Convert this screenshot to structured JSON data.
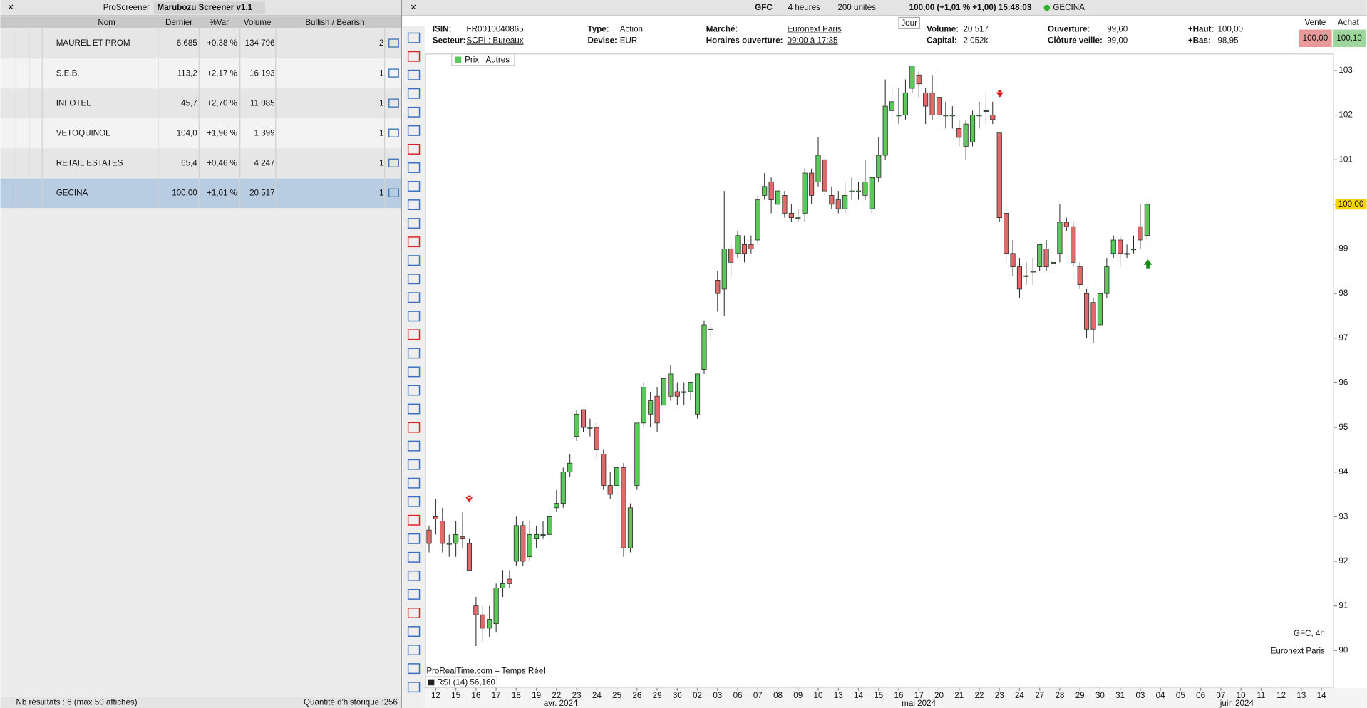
{
  "screener": {
    "tab": "ProScreener",
    "name": "Marubozu Screener v1.1",
    "columns": [
      "Nom",
      "Dernier",
      "%Var",
      "Volume",
      "Bullish / Bearish"
    ],
    "rows": [
      [
        "MAUREL ET PROM",
        "6,685",
        "+0,38 %",
        "134 796",
        "2"
      ],
      [
        "S.E.B.",
        "113,2",
        "+2,17 %",
        "16 193",
        "1"
      ],
      [
        "INFOTEL",
        "45,7",
        "+2,70 %",
        "11 085",
        "1"
      ],
      [
        "VETOQUINOL",
        "104,0",
        "+1,96 %",
        "1 399",
        "1"
      ],
      [
        "RETAIL ESTATES",
        "65,4",
        "+0,46 %",
        "4 247",
        "1"
      ],
      [
        "GECINA",
        "100,00",
        "+1,01 %",
        "20 517",
        "1"
      ]
    ],
    "status": "Nb résultats : 6 (max 50 affichés)",
    "history": "Quantité d'historique :256"
  },
  "topbar": {
    "symbol": "GFC",
    "period": "4 heures",
    "units": "200 unités",
    "quote": "100,00 (+1,01 % +1,00) 15:48:03",
    "name": "GECINA"
  },
  "info": [
    [
      "ISIN:",
      "FR0010040865"
    ],
    [
      "Secteur:",
      "SCPI : Bureaux"
    ],
    [
      "Type:",
      "Action"
    ],
    [
      "Devise:",
      "EUR"
    ],
    [
      "Marché:",
      "Euronext Paris"
    ],
    [
      "Horaires ouverture:",
      "09:00 à 17:35"
    ],
    [
      "Volume:",
      "20 517"
    ],
    [
      "Capital:",
      "2 052k"
    ],
    [
      "Ouverture:",
      "99,60"
    ],
    [
      "Clôture veille:",
      "99,00"
    ],
    [
      "+Haut:",
      "100,00"
    ],
    [
      "+Bas:",
      "98,95"
    ]
  ],
  "timeframe": "Jour",
  "sell": {
    "label": "Vente",
    "value": "100,00"
  },
  "buy": {
    "label": "Achat",
    "value": "100,10"
  },
  "chart": {
    "type": "candlestick",
    "legend": [
      "Prix",
      "Autres"
    ],
    "up_color": "#5cc85c",
    "down_color": "#e06a6a",
    "ylim": [
      89.16,
      103.37
    ],
    "yticks": [
      90,
      91,
      92,
      93,
      94,
      95,
      96,
      97,
      98,
      99,
      100,
      101,
      102,
      103
    ],
    "last_price": {
      "value": 100,
      "label": "100,00"
    },
    "x_labels": [
      "12",
      "15",
      "16",
      "17",
      "18",
      "19",
      "22",
      "23",
      "24",
      "25",
      "26",
      "29",
      "30",
      "02",
      "03",
      "06",
      "07",
      "08",
      "09",
      "10",
      "13",
      "14",
      "15",
      "16",
      "17",
      "20",
      "21",
      "22",
      "23",
      "24",
      "27",
      "28",
      "29",
      "30",
      "31",
      "03",
      "04",
      "05",
      "06",
      "07",
      "10",
      "11",
      "12",
      "13",
      "14"
    ],
    "months": [
      "avr. 2024",
      "mai 2024",
      "juin 2024"
    ],
    "candles": [
      [
        92.7,
        92.8,
        92.2,
        92.4
      ],
      [
        93.0,
        93.4,
        92.6,
        92.95
      ],
      [
        92.9,
        93.2,
        92.2,
        92.4
      ],
      [
        92.4,
        92.6,
        92.1,
        92.4
      ],
      [
        92.4,
        92.9,
        92.1,
        92.6
      ],
      [
        92.55,
        93.1,
        92.3,
        92.5
      ],
      [
        92.4,
        92.5,
        91.8,
        91.8
      ],
      [
        91.0,
        91.2,
        90.1,
        90.8
      ],
      [
        90.8,
        91.0,
        90.2,
        90.5
      ],
      [
        90.5,
        91.0,
        90.3,
        90.7
      ],
      [
        90.6,
        91.5,
        90.4,
        91.4
      ],
      [
        91.4,
        91.8,
        91.2,
        91.5
      ],
      [
        91.6,
        91.8,
        91.4,
        91.5
      ],
      [
        92.0,
        93.0,
        91.9,
        92.8
      ],
      [
        92.8,
        92.9,
        91.9,
        92.0
      ],
      [
        92.1,
        92.9,
        92.0,
        92.6
      ],
      [
        92.5,
        92.8,
        92.3,
        92.6
      ],
      [
        92.6,
        92.9,
        92.5,
        92.6
      ],
      [
        92.6,
        93.2,
        92.5,
        93.0
      ],
      [
        93.2,
        93.6,
        93.1,
        93.3
      ],
      [
        93.3,
        94.1,
        93.2,
        94.0
      ],
      [
        94.0,
        94.4,
        93.9,
        94.2
      ],
      [
        94.8,
        95.4,
        94.7,
        95.3
      ],
      [
        95.4,
        95.4,
        94.9,
        95.0
      ],
      [
        95.0,
        95.2,
        94.8,
        95.0
      ],
      [
        95.0,
        95.1,
        94.3,
        94.5
      ],
      [
        94.4,
        94.5,
        93.6,
        93.7
      ],
      [
        93.7,
        94.0,
        93.4,
        93.5
      ],
      [
        93.7,
        94.2,
        93.5,
        94.1
      ],
      [
        94.1,
        94.2,
        92.1,
        92.3
      ],
      [
        92.3,
        93.3,
        92.2,
        93.2
      ],
      [
        93.7,
        95.1,
        93.6,
        95.1
      ],
      [
        95.1,
        96.0,
        95.0,
        95.9
      ],
      [
        95.3,
        95.8,
        95.0,
        95.6
      ],
      [
        95.7,
        95.9,
        94.9,
        95.1
      ],
      [
        95.5,
        96.2,
        95.4,
        96.1
      ],
      [
        95.7,
        96.4,
        95.6,
        96.2
      ],
      [
        95.8,
        96.0,
        95.5,
        95.7
      ],
      [
        95.8,
        96.0,
        95.5,
        95.8
      ],
      [
        95.8,
        96.0,
        95.6,
        96.0
      ],
      [
        95.3,
        96.2,
        95.2,
        96.2
      ],
      [
        96.3,
        97.4,
        96.2,
        97.3
      ],
      [
        97.2,
        97.4,
        97.0,
        97.2
      ],
      [
        98.3,
        98.5,
        97.6,
        98.0
      ],
      [
        98.1,
        100.3,
        97.5,
        99.0
      ],
      [
        99.0,
        99.1,
        98.4,
        98.7
      ],
      [
        98.9,
        99.4,
        98.8,
        99.3
      ],
      [
        99.1,
        99.3,
        98.7,
        98.9
      ],
      [
        99.1,
        99.3,
        98.9,
        99.0
      ],
      [
        99.2,
        100.2,
        99.1,
        100.1
      ],
      [
        100.2,
        100.7,
        100.1,
        100.4
      ],
      [
        100.5,
        100.6,
        99.8,
        100.1
      ],
      [
        100.0,
        100.4,
        99.8,
        100.3
      ],
      [
        100.2,
        100.3,
        99.7,
        99.8
      ],
      [
        99.8,
        100.0,
        99.6,
        99.7
      ],
      [
        99.7,
        99.9,
        99.6,
        99.7
      ],
      [
        99.8,
        100.8,
        99.6,
        100.7
      ],
      [
        100.7,
        100.8,
        100.0,
        100.2
      ],
      [
        100.5,
        101.5,
        100.4,
        101.1
      ],
      [
        101.0,
        101.1,
        100.2,
        100.3
      ],
      [
        100.2,
        100.4,
        99.9,
        100.0
      ],
      [
        100.1,
        100.3,
        99.8,
        99.9
      ],
      [
        99.9,
        100.5,
        99.8,
        100.2
      ],
      [
        100.3,
        100.6,
        100.1,
        100.3
      ],
      [
        100.3,
        100.5,
        100.1,
        100.3
      ],
      [
        100.2,
        101.0,
        100.1,
        100.5
      ],
      [
        99.9,
        100.6,
        99.8,
        100.6
      ],
      [
        100.6,
        101.5,
        100.5,
        101.1
      ],
      [
        101.1,
        102.8,
        101.0,
        102.2
      ],
      [
        102.1,
        102.6,
        101.9,
        102.3
      ],
      [
        102.0,
        102.6,
        101.8,
        102.0
      ],
      [
        102.0,
        102.8,
        101.9,
        102.5
      ],
      [
        102.6,
        103.1,
        102.5,
        103.1
      ],
      [
        102.9,
        103.0,
        102.4,
        102.7
      ],
      [
        102.5,
        102.6,
        101.8,
        102.2
      ],
      [
        102.5,
        102.9,
        101.9,
        102.0
      ],
      [
        102.4,
        103.0,
        101.7,
        102.0
      ],
      [
        102.0,
        102.3,
        101.7,
        102.0
      ],
      [
        102.0,
        102.2,
        101.7,
        102.0
      ],
      [
        101.7,
        101.9,
        101.3,
        101.5
      ],
      [
        101.3,
        101.9,
        101.0,
        101.8
      ],
      [
        101.4,
        102.1,
        101.3,
        102.0
      ],
      [
        102.0,
        102.3,
        101.7,
        102.0
      ],
      [
        102.1,
        102.5,
        101.8,
        102.1
      ],
      [
        102.0,
        102.3,
        101.8,
        101.9
      ],
      [
        101.6,
        101.6,
        99.6,
        99.7
      ],
      [
        99.8,
        99.9,
        98.7,
        98.9
      ],
      [
        98.9,
        99.2,
        98.4,
        98.6
      ],
      [
        98.6,
        98.8,
        97.9,
        98.1
      ],
      [
        98.4,
        98.7,
        98.2,
        98.4
      ],
      [
        98.5,
        98.8,
        98.2,
        98.5
      ],
      [
        98.6,
        99.1,
        98.5,
        99.1
      ],
      [
        99.0,
        99.2,
        98.5,
        98.6
      ],
      [
        98.7,
        98.9,
        98.5,
        98.7
      ],
      [
        98.9,
        100.0,
        98.7,
        99.6
      ],
      [
        99.6,
        99.7,
        99.4,
        99.5
      ],
      [
        99.5,
        99.6,
        98.6,
        98.7
      ],
      [
        98.6,
        98.7,
        98.1,
        98.2
      ],
      [
        98.0,
        98.1,
        97.0,
        97.2
      ],
      [
        97.8,
        97.9,
        96.9,
        97.2
      ],
      [
        97.3,
        98.1,
        97.2,
        98.0
      ],
      [
        98.0,
        98.8,
        97.9,
        98.6
      ],
      [
        98.9,
        99.3,
        98.8,
        99.2
      ],
      [
        99.2,
        99.3,
        98.6,
        98.9
      ],
      [
        98.9,
        99.1,
        98.8,
        98.9
      ],
      [
        99.0,
        99.3,
        98.9,
        99.0
      ],
      [
        99.5,
        100.0,
        99.0,
        99.2
      ],
      [
        99.3,
        100.0,
        99.2,
        100.0
      ]
    ],
    "footer": "ProRealTime.com – Temps Réel",
    "indicator": "RSI (14) 56,160",
    "watermark": [
      "GFC, 4h",
      "Euronext Paris"
    ]
  }
}
